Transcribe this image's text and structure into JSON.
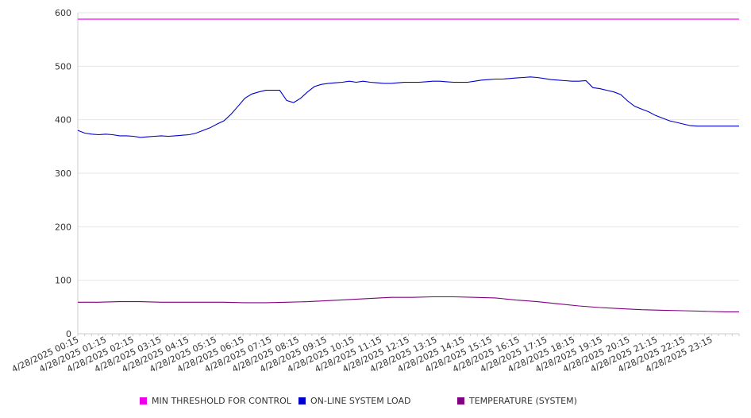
{
  "chart_data": {
    "type": "line",
    "ylim": [
      0,
      600
    ],
    "yticks": [
      0,
      100,
      200,
      300,
      400,
      500,
      600
    ],
    "xtick_labels": [
      "4/28/2025 00:15",
      "4/28/2025 01:15",
      "4/28/2025 02:15",
      "4/28/2025 03:15",
      "4/28/2025 04:15",
      "4/28/2025 05:15",
      "4/28/2025 06:15",
      "4/28/2025 07:15",
      "4/28/2025 08:15",
      "4/28/2025 09:15",
      "4/28/2025 10:15",
      "4/28/2025 11:15",
      "4/28/2025 12:15",
      "4/28/2025 13:15",
      "4/28/2025 14:15",
      "4/28/2025 15:15",
      "4/28/2025 16:15",
      "4/28/2025 17:15",
      "4/28/2025 18:15",
      "4/28/2025 19:15",
      "4/28/2025 20:15",
      "4/28/2025 21:15",
      "4/28/2025 22:15",
      "4/28/2025 23:15"
    ],
    "x_hours": [
      0.25,
      24
    ],
    "grid": "horizontal",
    "legend": "bottom",
    "series": [
      {
        "name": "MIN THRESHOLD FOR CONTROL",
        "color": "#ee00ee",
        "x": [
          0.25,
          24
        ],
        "values": [
          588,
          588
        ]
      },
      {
        "name": "ON-LINE SYSTEM LOAD",
        "color": "#0000cc",
        "x": [
          0.25,
          0.5,
          0.75,
          1.0,
          1.25,
          1.5,
          1.75,
          2.0,
          2.25,
          2.5,
          2.75,
          3.0,
          3.25,
          3.5,
          3.75,
          4.0,
          4.25,
          4.5,
          4.75,
          5.0,
          5.25,
          5.5,
          5.75,
          6.0,
          6.25,
          6.5,
          6.75,
          7.0,
          7.25,
          7.5,
          7.75,
          8.0,
          8.25,
          8.5,
          8.75,
          9.0,
          9.25,
          9.5,
          9.75,
          10.0,
          10.25,
          10.5,
          10.75,
          11.0,
          11.25,
          11.5,
          11.75,
          12.0,
          12.25,
          12.5,
          12.75,
          13.0,
          13.25,
          13.5,
          13.75,
          14.0,
          14.25,
          14.5,
          14.75,
          15.0,
          15.25,
          15.5,
          15.75,
          16.0,
          16.25,
          16.5,
          16.75,
          17.0,
          17.25,
          17.5,
          17.75,
          18.0,
          18.25,
          18.5,
          18.75,
          19.0,
          19.25,
          19.5,
          19.75,
          20.0,
          20.25,
          20.5,
          20.75,
          21.0,
          21.25,
          21.5,
          21.75,
          22.0,
          22.25,
          22.5,
          22.75,
          23.0,
          23.25,
          23.5,
          23.75,
          24.0
        ],
        "values": [
          380,
          375,
          373,
          372,
          373,
          372,
          370,
          370,
          369,
          367,
          368,
          369,
          370,
          369,
          370,
          371,
          372,
          375,
          380,
          385,
          392,
          398,
          410,
          425,
          440,
          448,
          452,
          455,
          455,
          455,
          436,
          432,
          440,
          452,
          462,
          466,
          468,
          469,
          470,
          472,
          470,
          472,
          470,
          469,
          468,
          468,
          469,
          470,
          470,
          470,
          471,
          472,
          472,
          471,
          470,
          470,
          470,
          472,
          474,
          475,
          476,
          476,
          477,
          478,
          479,
          480,
          479,
          477,
          475,
          474,
          473,
          472,
          472,
          473,
          460,
          458,
          455,
          452,
          447,
          435,
          425,
          420,
          415,
          408,
          403,
          398,
          395,
          392,
          389,
          388,
          388,
          388,
          388,
          388,
          388,
          388
        ]
      },
      {
        "name": "TEMPERATURE (SYSTEM)",
        "color": "#800080",
        "x": [
          0.25,
          1.0,
          1.75,
          2.5,
          3.25,
          4.0,
          4.75,
          5.5,
          6.25,
          7.0,
          7.75,
          8.5,
          9.25,
          10.0,
          10.75,
          11.5,
          12.25,
          13.0,
          13.75,
          14.5,
          15.25,
          16.0,
          16.75,
          17.5,
          18.25,
          19.0,
          19.75,
          20.5,
          21.25,
          22.0,
          22.75,
          23.5,
          24.0
        ],
        "values": [
          59,
          59,
          60,
          60,
          59,
          59,
          59,
          59,
          58,
          58,
          59,
          60,
          62,
          64,
          66,
          68,
          68,
          69,
          69,
          68,
          67,
          63,
          60,
          56,
          52,
          49,
          47,
          45,
          44,
          43,
          42,
          41,
          41
        ]
      }
    ]
  }
}
